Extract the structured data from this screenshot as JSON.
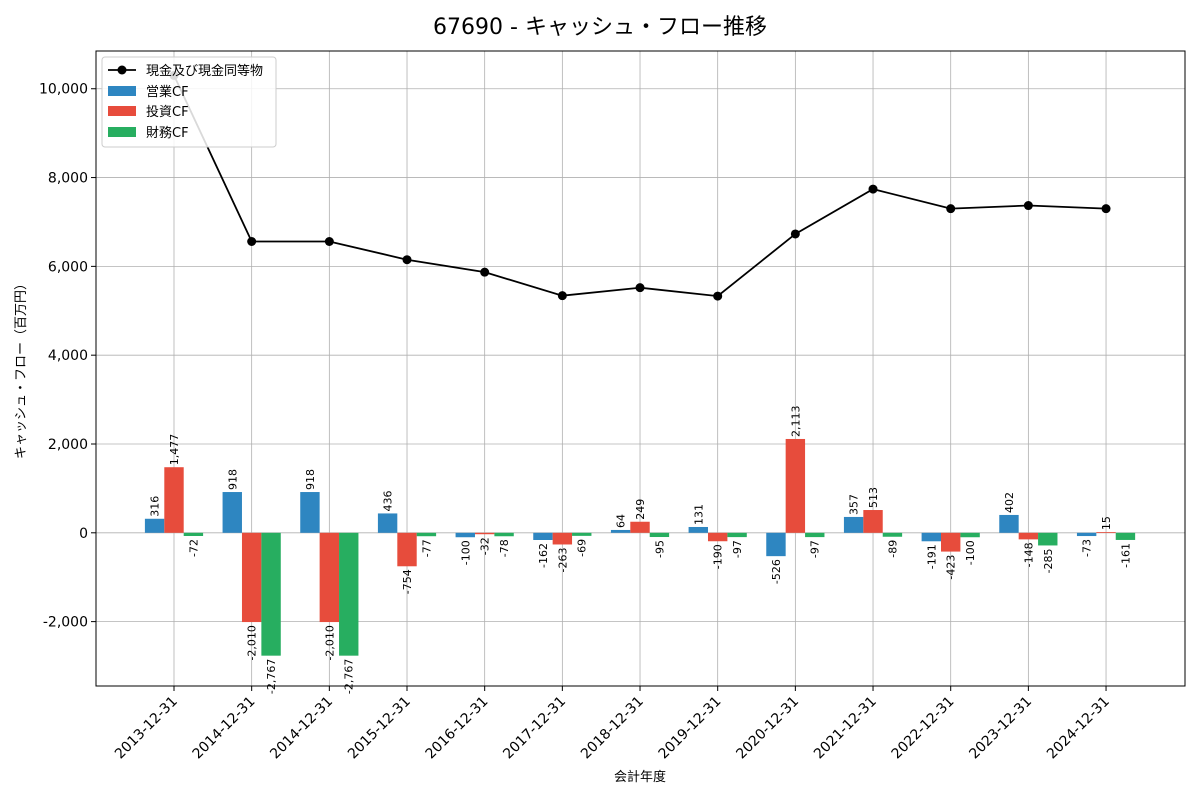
{
  "chart_data": {
    "type": "bar",
    "title": "67690 - キャッシュ・フロー推移",
    "xlabel": "会計年度",
    "ylabel": "キャッシュ・フロー（百万円）",
    "ylim": [
      -3450,
      10850
    ],
    "yticks": [
      -2000,
      0,
      2000,
      4000,
      6000,
      8000,
      10000
    ],
    "ytick_labels": [
      "-2,000",
      "0",
      "2,000",
      "4,000",
      "6,000",
      "8,000",
      "10,000"
    ],
    "grid": true,
    "legend_position": "top-left",
    "categories": [
      "2013-12-31",
      "2014-12-31",
      "2014-12-31",
      "2015-12-31",
      "2016-12-31",
      "2017-12-31",
      "2018-12-31",
      "2019-12-31",
      "2020-12-31",
      "2021-12-31",
      "2022-12-31",
      "2023-12-31",
      "2024-12-31"
    ],
    "line_series": {
      "name": "現金及び現金同等物",
      "color": "#000000",
      "values": [
        10300,
        6560,
        6560,
        6150,
        5870,
        5340,
        5520,
        5330,
        6730,
        7740,
        7300,
        7370,
        7300
      ]
    },
    "series": [
      {
        "name": "営業CF",
        "color": "#2e86c1",
        "values": [
          316,
          918,
          918,
          436,
          -100,
          -162,
          64,
          131,
          -526,
          357,
          -191,
          402,
          -73
        ],
        "labels": [
          "316",
          "918",
          "918",
          "436",
          "-100",
          "-162",
          "64",
          "131",
          "-526",
          "357",
          "-191",
          "402",
          "-73"
        ]
      },
      {
        "name": "投資CF",
        "color": "#e74c3c",
        "values": [
          1477,
          -2010,
          -2010,
          -754,
          -32,
          -263,
          249,
          -190,
          2113,
          513,
          -423,
          -148,
          15
        ],
        "labels": [
          "1,477",
          "-2,010",
          "-2,010",
          "-754",
          "-32",
          "-263",
          "249",
          "-190",
          "2,113",
          "513",
          "-423",
          "-148",
          "15"
        ]
      },
      {
        "name": "財務CF",
        "color": "#27ae60",
        "values": [
          -72,
          -2767,
          -2767,
          -77,
          -78,
          -69,
          -95,
          -97,
          -97,
          -89,
          -100,
          -285,
          -161
        ],
        "labels": [
          "-72",
          "-2,767",
          "-2,767",
          "-77",
          "-78",
          "-69",
          "-95",
          "-97",
          "-97",
          "-89",
          "-100",
          "-285",
          "-161"
        ]
      }
    ]
  }
}
